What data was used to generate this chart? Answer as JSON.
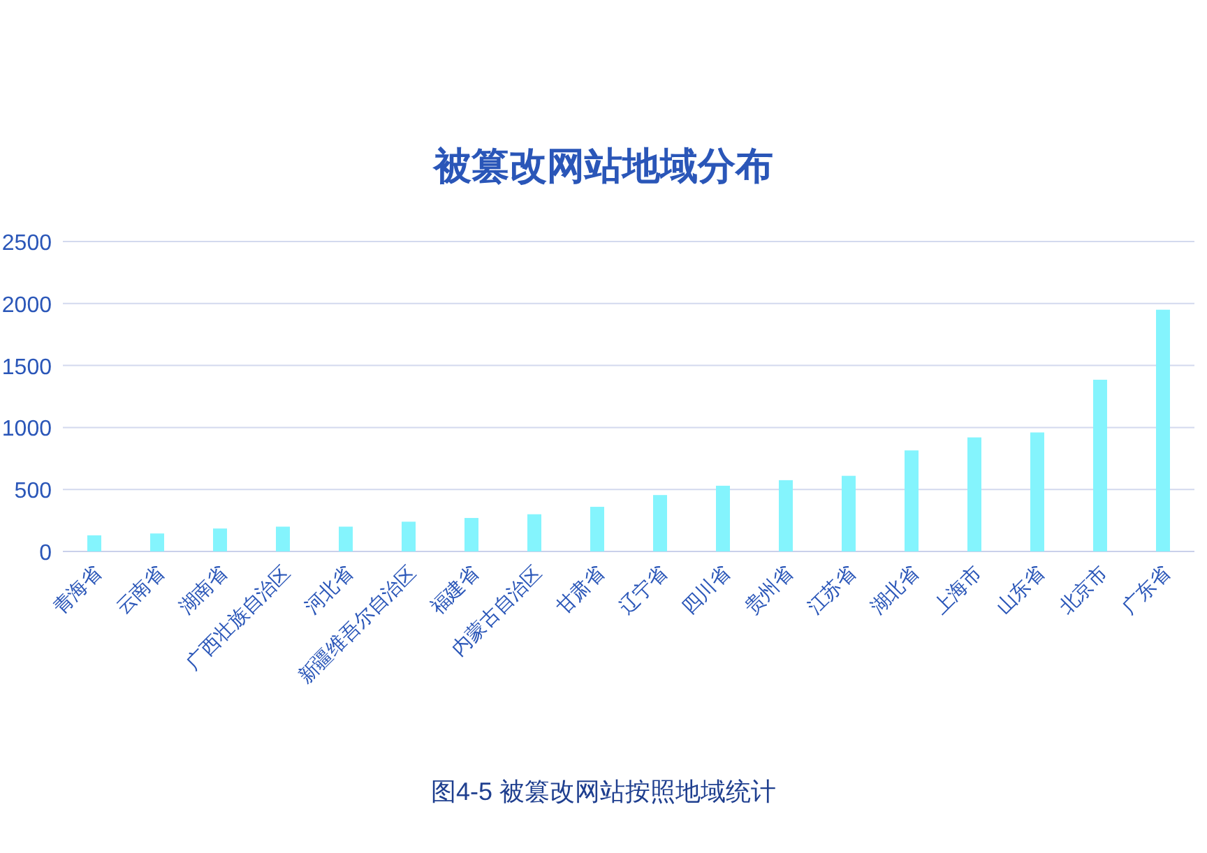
{
  "chart_data": {
    "type": "bar",
    "title": "被篡改网站地域分布",
    "categories": [
      "青海省",
      "云南省",
      "湖南省",
      "广西壮族自治区",
      "河北省",
      "新疆维吾尔自治区",
      "福建省",
      "内蒙古自治区",
      "甘肃省",
      "辽宁省",
      "四川省",
      "贵州省",
      "江苏省",
      "湖北省",
      "上海市",
      "山东省",
      "北京市",
      "广东省"
    ],
    "values": [
      130,
      145,
      185,
      200,
      200,
      240,
      270,
      300,
      360,
      455,
      530,
      575,
      610,
      815,
      920,
      960,
      1385,
      1950
    ],
    "color": "#84f4fd",
    "ylim": [
      0,
      2500
    ],
    "yticks": [
      0,
      500,
      1000,
      1500,
      2000,
      2500
    ],
    "grid": "y",
    "annotations": [
      "图4-5  被篡改网站按照地域统计"
    ]
  }
}
